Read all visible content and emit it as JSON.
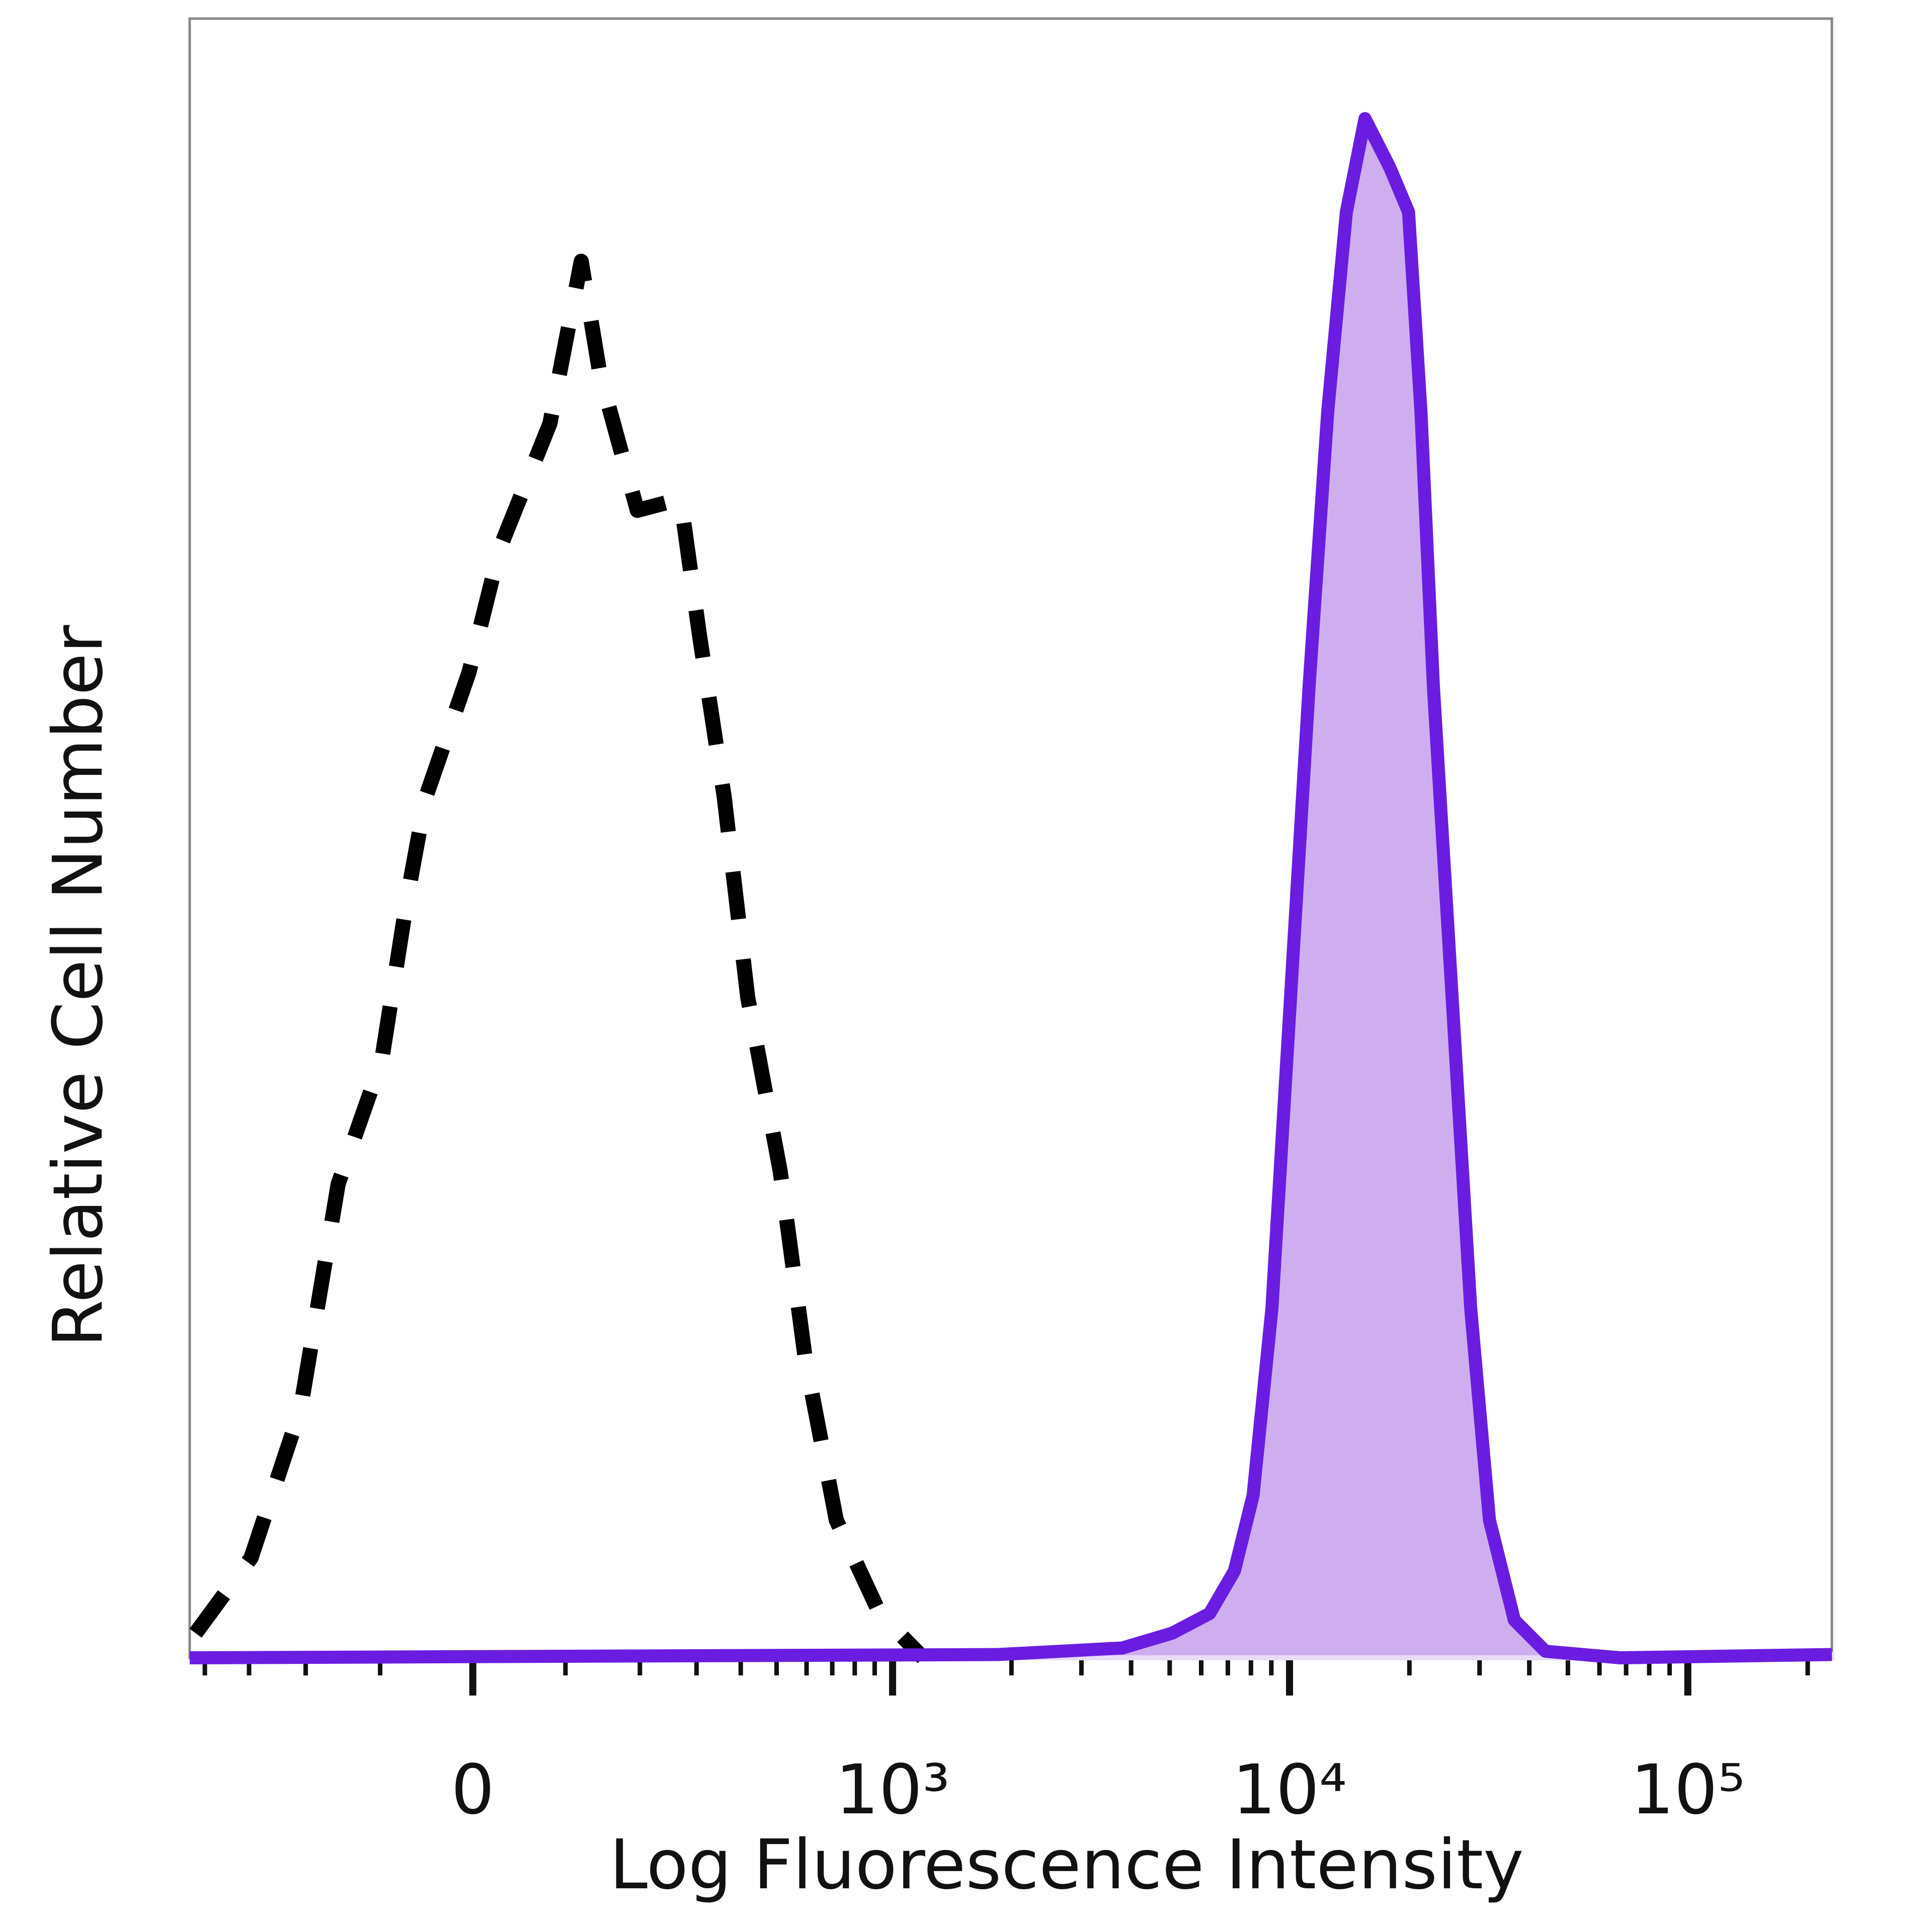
{
  "chart_data": {
    "type": "histogram-overlay",
    "x_label": "Log Fluorescence Intensity",
    "y_label": "Relative Cell Number",
    "xscale": "biexponential",
    "xlim": [
      -440,
      230000
    ],
    "ylim": [
      0,
      100
    ],
    "xticks": [
      0,
      {
        "value": 1000,
        "label": "10³"
      },
      {
        "value": 10000,
        "label": "10⁴"
      },
      {
        "value": 100000,
        "label": "10⁵"
      }
    ],
    "xminor_ticks": [
      -400,
      -300,
      -200,
      -100,
      100,
      200,
      300,
      400,
      500,
      600,
      700,
      800,
      900,
      2000,
      3000,
      4000,
      5000,
      6000,
      7000,
      8000,
      9000,
      20000,
      30000,
      40000,
      50000,
      60000,
      70000,
      80000,
      90000,
      200000
    ],
    "series": [
      {
        "color": "#000000",
        "dashed": true,
        "x": [
          -424,
          -296,
          -208,
          -153,
          -98,
          -69,
          -49,
          -4,
          28,
          82,
          119,
          143,
          196,
          269,
          306,
          360,
          418,
          511,
          595,
          717,
          927,
          1196
        ],
        "values": [
          1.5,
          6.1,
          15.2,
          28.9,
          36.5,
          46.4,
          52.5,
          60.1,
          67.7,
          75.3,
          85.2,
          78.3,
          70,
          70.7,
          62.4,
          52.5,
          40.3,
          29.7,
          18.3,
          8.4,
          2.7,
          0
        ]
      },
      {
        "color": "#6a1de0",
        "fill": "#cfaef0",
        "dashed": false,
        "x": [
          -440,
          1850,
          3800,
          5070,
          6300,
          7270,
          8100,
          9030,
          10060,
          11200,
          12470,
          13890,
          15470,
          17870,
          19900,
          21380,
          22970,
          25600,
          28510,
          31770,
          36690,
          43900,
          67600,
          230000
        ],
        "values": [
          0,
          0.2,
          0.6,
          1.5,
          2.7,
          5.3,
          9.9,
          21.3,
          40.3,
          59.3,
          76,
          88.2,
          93.9,
          90.9,
          88.2,
          76,
          59.3,
          40.3,
          21.3,
          8.4,
          2.3,
          0.4,
          0,
          0.2
        ]
      }
    ]
  }
}
